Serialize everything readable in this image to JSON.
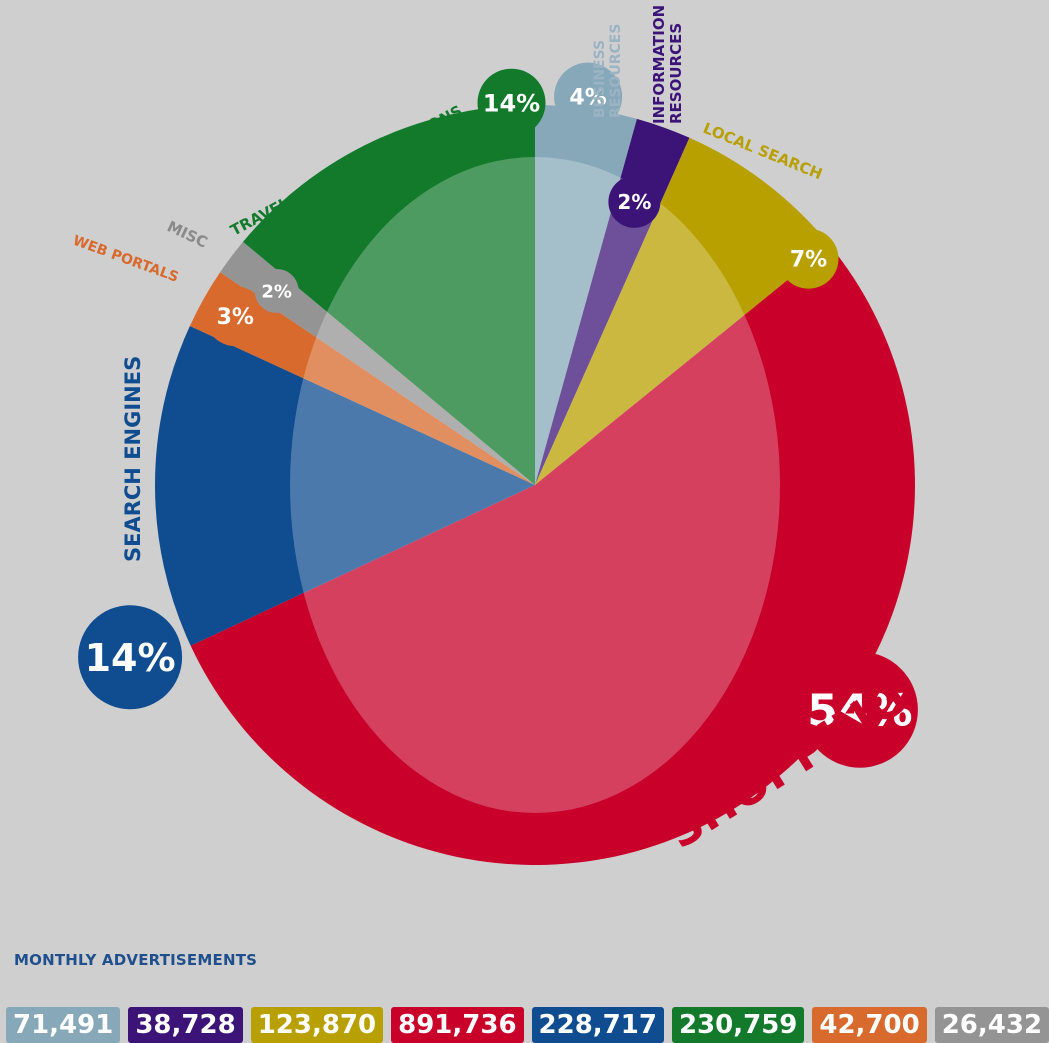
{
  "chart_data": {
    "type": "pie",
    "title": "",
    "slices": [
      {
        "label": "BUSINESS\nRESOURCES",
        "percent_label": "4%",
        "percent": 4,
        "value": 71491,
        "color": "#86a8b9",
        "label_color": "#9bb3c2"
      },
      {
        "label": "INFORMATION\nRESOURCES",
        "percent_label": "2%",
        "percent": 2,
        "value": 38728,
        "color": "#3c1478",
        "label_color": "#3c1478"
      },
      {
        "label": "LOCAL SEARCH",
        "percent_label": "7%",
        "percent": 7,
        "value": 123870,
        "color": "#b8a000",
        "label_color": "#b8a000"
      },
      {
        "label": "SHOPPING",
        "percent_label": "54%",
        "percent": 54,
        "value": 891736,
        "color": "#c8002a",
        "label_color": "#c8002a"
      },
      {
        "label": "SEARCH ENGINES",
        "percent_label": "14%",
        "percent": 14,
        "value": 228717,
        "color": "#0f4c90",
        "label_color": "#0f4c90"
      },
      {
        "label": "WEB PORTALS",
        "percent_label": "3%",
        "percent": 3,
        "value": 42700,
        "color": "#d76a2c",
        "label_color": "#d76a2c"
      },
      {
        "label": "MISC",
        "percent_label": "2%",
        "percent": 2,
        "value": 26432,
        "color": "#949494",
        "label_color": "#8a8a8a"
      },
      {
        "label": "TRAVEL AND ACCOMODATIONS",
        "percent_label": "14%",
        "percent": 14,
        "value": 230759,
        "color": "#137a2c",
        "label_color": "#137a2c"
      }
    ]
  },
  "footer": {
    "title": "MONTHLY ADVERTISEMENTS",
    "totals": [
      {
        "text": "71,491",
        "color": "#86a8b9"
      },
      {
        "text": "38,728",
        "color": "#3c1478"
      },
      {
        "text": "123,870",
        "color": "#b8a000"
      },
      {
        "text": "891,736",
        "color": "#c8002a"
      },
      {
        "text": "228,717",
        "color": "#0f4c90"
      },
      {
        "text": "230,759",
        "color": "#137a2c"
      },
      {
        "text": "42,700",
        "color": "#d76a2c"
      },
      {
        "text": "26,432",
        "color": "#949494"
      }
    ]
  }
}
